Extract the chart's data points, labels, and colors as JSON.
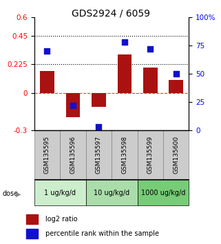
{
  "title": "GDS2924 / 6059",
  "samples": [
    "GSM135595",
    "GSM135596",
    "GSM135597",
    "GSM135598",
    "GSM135599",
    "GSM135600"
  ],
  "log2_ratio": [
    0.175,
    -0.195,
    -0.11,
    0.305,
    0.2,
    0.1
  ],
  "percentile_rank": [
    70,
    22,
    3,
    78,
    72,
    50
  ],
  "bar_color": "#aa1111",
  "dot_color": "#1111cc",
  "left_ylim": [
    -0.3,
    0.6
  ],
  "right_ylim": [
    0,
    100
  ],
  "left_yticks": [
    -0.3,
    0,
    0.225,
    0.45,
    0.6
  ],
  "right_yticks": [
    0,
    25,
    50,
    75,
    100
  ],
  "right_yticklabels": [
    "0",
    "25",
    "50",
    "75",
    "100%"
  ],
  "hlines_dotted": [
    0.225,
    0.45
  ],
  "hline_dashed": 0,
  "dose_groups": [
    {
      "label": "1 ug/kg/d",
      "start": 0,
      "end": 1,
      "color": "#cceecc"
    },
    {
      "label": "10 ug/kg/d",
      "start": 2,
      "end": 3,
      "color": "#aaddaa"
    },
    {
      "label": "1000 ug/kg/d",
      "start": 4,
      "end": 5,
      "color": "#77cc77"
    }
  ],
  "bar_width": 0.55,
  "dot_size": 35,
  "title_fontsize": 10,
  "tick_fontsize": 7.5,
  "legend_fontsize": 7
}
